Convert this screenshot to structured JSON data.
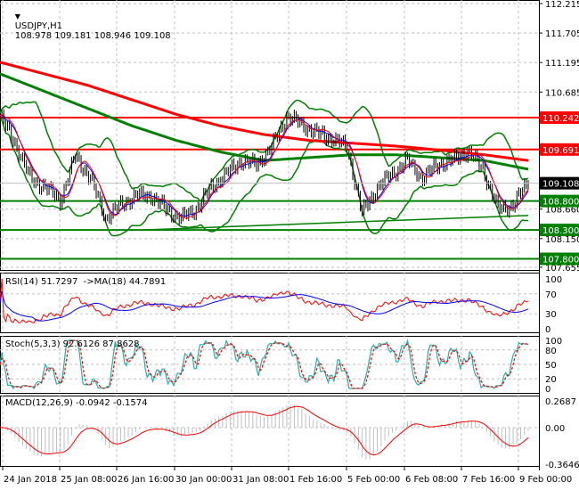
{
  "header": {
    "arrow_icon": "triangle-down-icon",
    "symbol": "USDJPY,H1",
    "ohlc": "108.978 109.181 108.946 109.108"
  },
  "price_axis": {
    "labels": [
      "112.215",
      "111.705",
      "111.195",
      "110.685",
      "108.660",
      "108.150",
      "107.655"
    ],
    "values": [
      112.215,
      111.705,
      111.195,
      110.685,
      108.66,
      108.15,
      107.655
    ],
    "current_price": "109.108",
    "levels": [
      {
        "value": 110.242,
        "label": "110.242",
        "color": "#ff0000"
      },
      {
        "value": 109.691,
        "label": "109.691",
        "color": "#ff0000"
      },
      {
        "value": 108.8,
        "label": "108.800",
        "color": "#008000"
      },
      {
        "value": 108.3,
        "label": "108.300",
        "color": "#008000"
      },
      {
        "value": 107.8,
        "label": "107.800",
        "color": "#008000"
      }
    ]
  },
  "chart_data": {
    "type": "line",
    "bars_per_point": 8,
    "close": [
      110.27,
      109.81,
      109.19,
      109.04,
      108.81,
      109.58,
      109.19,
      108.5,
      108.73,
      108.89,
      108.89,
      108.66,
      108.5,
      108.66,
      109.04,
      109.27,
      109.5,
      109.43,
      109.73,
      110.27,
      110.12,
      109.97,
      109.89,
      109.73,
      108.58,
      109.04,
      109.27,
      109.5,
      109.19,
      109.43,
      109.5,
      109.66,
      109.35,
      108.66,
      108.73,
      109.12
    ],
    "ma_red": [
      111.2,
      111.0,
      110.8,
      110.55,
      110.3,
      110.1,
      109.95,
      109.85,
      109.8,
      109.75,
      109.68,
      109.6,
      109.5
    ],
    "ma_green": [
      111.0,
      110.7,
      110.4,
      110.1,
      109.85,
      109.65,
      109.5,
      109.55,
      109.6,
      109.6,
      109.55,
      109.5,
      109.35
    ],
    "trendline": [
      108.3,
      108.55
    ],
    "colors": {
      "bull": "#000000",
      "red_ma": "#ff0000",
      "green": "#008000",
      "signal_blue": "#0000ff",
      "stoch_main": "#20b2aa",
      "histogram": "#c0c0c0"
    }
  },
  "rsi": {
    "label": "RSI(14) 51.7297  ->MA(18) 44.7891",
    "ticks": [
      "100",
      "70",
      "30",
      "0"
    ]
  },
  "stoch": {
    "label": "Stoch(5,3,3) 92.6126 87.8628",
    "ticks": [
      "100",
      "80",
      "50",
      "20",
      "0"
    ]
  },
  "macd": {
    "label": "MACD(12,26,9) -0.0942 -0.1574",
    "ticks": [
      "0.2687",
      "0.00",
      "-0.3646"
    ]
  },
  "time_axis": [
    "24 Jan 2018",
    "25 Jan 08:00",
    "26 Jan 16:00",
    "30 Jan 00:00",
    "31 Jan 08:00",
    "1 Feb 16:00",
    "5 Feb 00:00",
    "6 Feb 08:00",
    "7 Feb 16:00",
    "9 Feb 00:00"
  ]
}
